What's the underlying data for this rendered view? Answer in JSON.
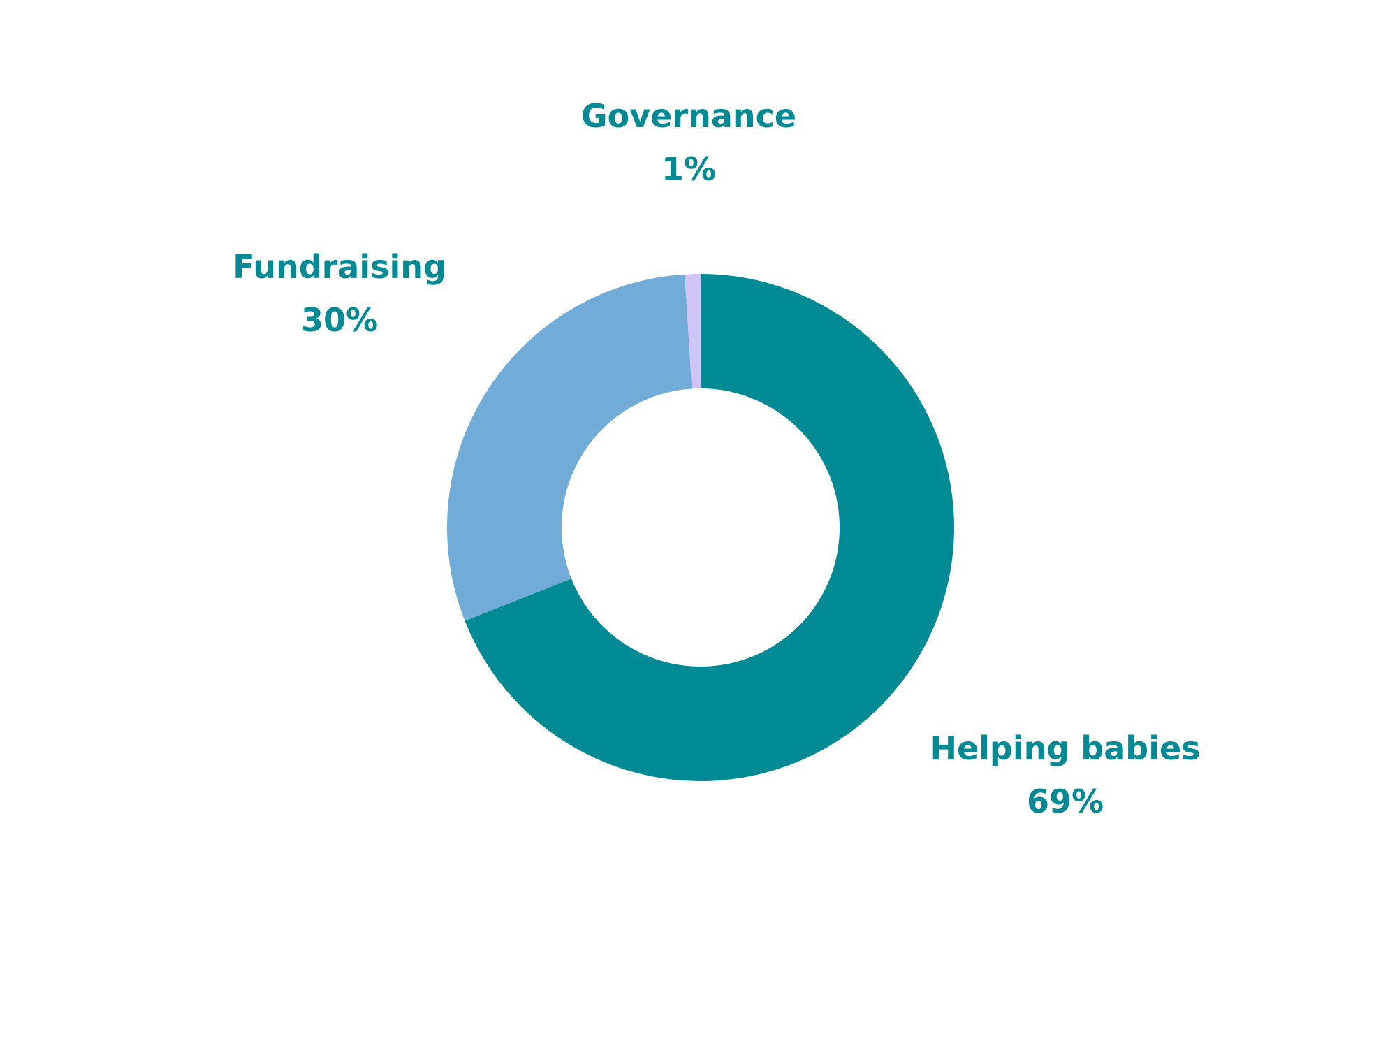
{
  "chart_data": {
    "type": "pie",
    "style": "donut",
    "title": "",
    "slices": [
      {
        "label": "Helping babies",
        "value": 69,
        "value_label": "69%",
        "color": "#008a93"
      },
      {
        "label": "Fundraising",
        "value": 30,
        "value_label": "30%",
        "color": "#70acd7"
      },
      {
        "label": "Governance",
        "value": 1,
        "value_label": "1%",
        "color": "#d0c4f7"
      }
    ],
    "label_color": "#008a93",
    "start": "12 o'clock",
    "direction": "clockwise",
    "legend": "none",
    "labels": "outside slices"
  }
}
